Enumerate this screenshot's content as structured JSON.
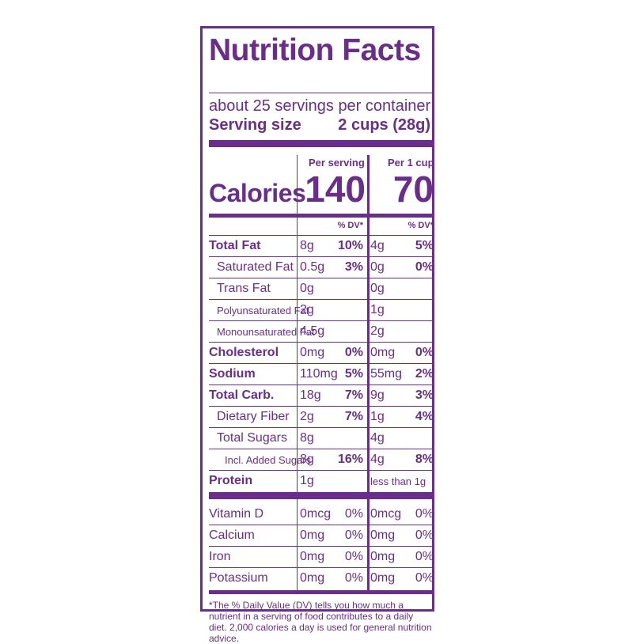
{
  "label": {
    "title": "Nutrition Facts",
    "servings_per_container": "about 25 servings per container",
    "serving_size_label": "Serving size",
    "serving_size_value": "2 cups (28g)",
    "col1_header": "Per serving",
    "col2_header": "Per 1 cup",
    "calories_label": "Calories",
    "calories_col1": "140",
    "calories_col2": "70",
    "dv_header_col1": "% DV*",
    "dv_header_col2": "% DV*",
    "nutrients": [
      {
        "name": "Total Fat",
        "amt1": "8g",
        "dv1": "10%",
        "amt2": "4g",
        "dv2": "5%"
      },
      {
        "name": "Saturated Fat",
        "amt1": "0.5g",
        "dv1": "3%",
        "amt2": "0g",
        "dv2": "0%"
      },
      {
        "name": "Trans Fat",
        "amt1": "0g",
        "dv1": "",
        "amt2": "0g",
        "dv2": ""
      },
      {
        "name": "Polyunsaturated Fat",
        "amt1": "2g",
        "dv1": "",
        "amt2": "1g",
        "dv2": ""
      },
      {
        "name": "Monounsaturated Fat",
        "amt1": "4.5g",
        "dv1": "",
        "amt2": "2g",
        "dv2": ""
      },
      {
        "name": "Cholesterol",
        "amt1": "0mg",
        "dv1": "0%",
        "amt2": "0mg",
        "dv2": "0%"
      },
      {
        "name": "Sodium",
        "amt1": "110mg",
        "dv1": "5%",
        "amt2": "55mg",
        "dv2": "2%"
      },
      {
        "name": "Total Carb.",
        "amt1": "18g",
        "dv1": "7%",
        "amt2": "9g",
        "dv2": "3%"
      },
      {
        "name": "Dietary Fiber",
        "amt1": "2g",
        "dv1": "7%",
        "amt2": "1g",
        "dv2": "4%"
      },
      {
        "name": "Total Sugars",
        "amt1": "8g",
        "dv1": "",
        "amt2": "4g",
        "dv2": ""
      },
      {
        "name": "Incl. Added Sugars",
        "amt1": "8g",
        "dv1": "16%",
        "amt2": "4g",
        "dv2": "8%"
      },
      {
        "name": "Protein",
        "amt1": "1g",
        "dv1": "",
        "amt2": "less than 1g",
        "dv2": ""
      }
    ],
    "vitamins": [
      {
        "name": "Vitamin D",
        "amt1": "0mcg",
        "dv1": "0%",
        "amt2": "0mcg",
        "dv2": "0%"
      },
      {
        "name": "Calcium",
        "amt1": "0mg",
        "dv1": "0%",
        "amt2": "0mg",
        "dv2": "0%"
      },
      {
        "name": "Iron",
        "amt1": "0mg",
        "dv1": "0%",
        "amt2": "0mg",
        "dv2": "0%"
      },
      {
        "name": "Potassium",
        "amt1": "0mg",
        "dv1": "0%",
        "amt2": "0mg",
        "dv2": "0%"
      }
    ],
    "footnote": "*The % Daily Value (DV) tells you how much a nutrient in a serving of food contributes to a daily diet. 2,000 calories a day is used for general nutrition advice.",
    "accent_color": "#6b2d8c"
  }
}
